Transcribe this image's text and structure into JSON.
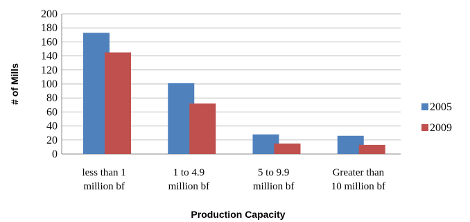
{
  "chart_data": {
    "type": "bar",
    "title": "",
    "xlabel": "Production Capacity",
    "ylabel": "# of Mills",
    "ylim": [
      0,
      200
    ],
    "ytick_step": 20,
    "grid": true,
    "legend_position": "right",
    "categories": [
      [
        "less than 1",
        "million bf"
      ],
      [
        "1 to 4.9",
        "million bf"
      ],
      [
        "5 to 9.9",
        "million bf"
      ],
      [
        "Greater than",
        "10 million bf"
      ]
    ],
    "series": [
      {
        "name": "2005",
        "color": "#4f81bd",
        "values": [
          173,
          101,
          28,
          26
        ]
      },
      {
        "name": "2009",
        "color": "#c0504d",
        "values": [
          145,
          72,
          15,
          13
        ]
      }
    ]
  }
}
